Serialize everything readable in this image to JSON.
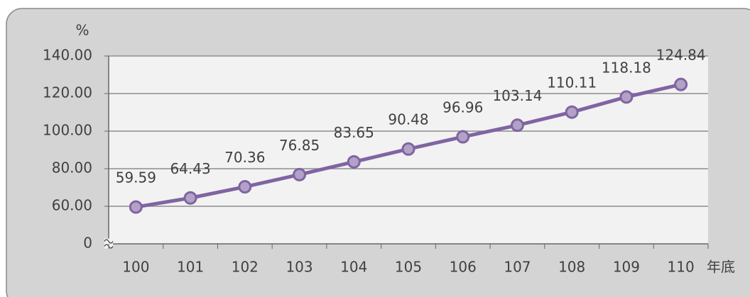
{
  "chart_data": {
    "type": "line",
    "y_label": "%",
    "x_label": "年底",
    "categories": [
      "100",
      "101",
      "102",
      "103",
      "104",
      "105",
      "106",
      "107",
      "108",
      "109",
      "110"
    ],
    "series": [
      {
        "name": null,
        "color": "#8064a2",
        "marker_fill": "#b3a2c7",
        "values": [
          59.59,
          64.43,
          70.36,
          76.85,
          83.65,
          90.48,
          96.96,
          103.14,
          110.11,
          118.18,
          124.84
        ]
      }
    ],
    "ylim": [
      0,
      140
    ],
    "ybreak": [
      0,
      40
    ],
    "yticks": [
      0,
      {
        "value": 60,
        "label": "60.00"
      },
      {
        "value": 80,
        "label": "80.00"
      },
      {
        "value": 100,
        "label": "100.00"
      },
      {
        "value": 120,
        "label": "120.00"
      },
      {
        "value": 140,
        "label": "140.00"
      }
    ],
    "grid": true
  }
}
